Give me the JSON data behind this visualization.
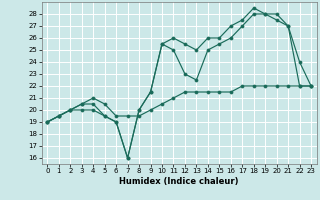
{
  "title": "",
  "xlabel": "Humidex (Indice chaleur)",
  "bg_color": "#cce8e8",
  "grid_color": "#ffffff",
  "line_color": "#1a6b5a",
  "xlim": [
    -0.5,
    23.5
  ],
  "ylim": [
    15.5,
    29.0
  ],
  "xticks": [
    0,
    1,
    2,
    3,
    4,
    5,
    6,
    7,
    8,
    9,
    10,
    11,
    12,
    13,
    14,
    15,
    16,
    17,
    18,
    19,
    20,
    21,
    22,
    23
  ],
  "yticks": [
    16,
    17,
    18,
    19,
    20,
    21,
    22,
    23,
    24,
    25,
    26,
    27,
    28
  ],
  "line1_x": [
    0,
    1,
    2,
    3,
    4,
    5,
    6,
    7,
    8,
    9,
    10,
    11,
    12,
    13,
    14,
    15,
    16,
    17,
    18,
    19,
    20,
    21,
    22,
    23
  ],
  "line1_y": [
    19,
    19.5,
    20,
    20,
    20,
    19.5,
    19,
    16,
    20,
    21.5,
    25.5,
    25,
    23,
    22.5,
    25,
    25.5,
    26,
    27,
    28,
    28,
    27.5,
    27,
    22,
    22
  ],
  "line2_x": [
    0,
    1,
    2,
    3,
    4,
    5,
    6,
    7,
    8,
    9,
    10,
    11,
    12,
    13,
    14,
    15,
    16,
    17,
    18,
    19,
    20,
    21,
    22,
    23
  ],
  "line2_y": [
    19,
    19.5,
    20,
    20.5,
    20.5,
    19.5,
    19,
    16,
    20,
    21.5,
    25.5,
    26,
    25.5,
    25,
    26,
    26,
    27,
    27.5,
    28.5,
    28,
    28,
    27,
    24,
    22
  ],
  "line3_x": [
    0,
    1,
    2,
    3,
    4,
    5,
    6,
    7,
    8,
    9,
    10,
    11,
    12,
    13,
    14,
    15,
    16,
    17,
    18,
    19,
    20,
    21,
    22,
    23
  ],
  "line3_y": [
    19,
    19.5,
    20,
    20.5,
    21,
    20.5,
    19.5,
    19.5,
    19.5,
    20,
    20.5,
    21,
    21.5,
    21.5,
    21.5,
    21.5,
    21.5,
    22,
    22,
    22,
    22,
    22,
    22,
    22
  ]
}
